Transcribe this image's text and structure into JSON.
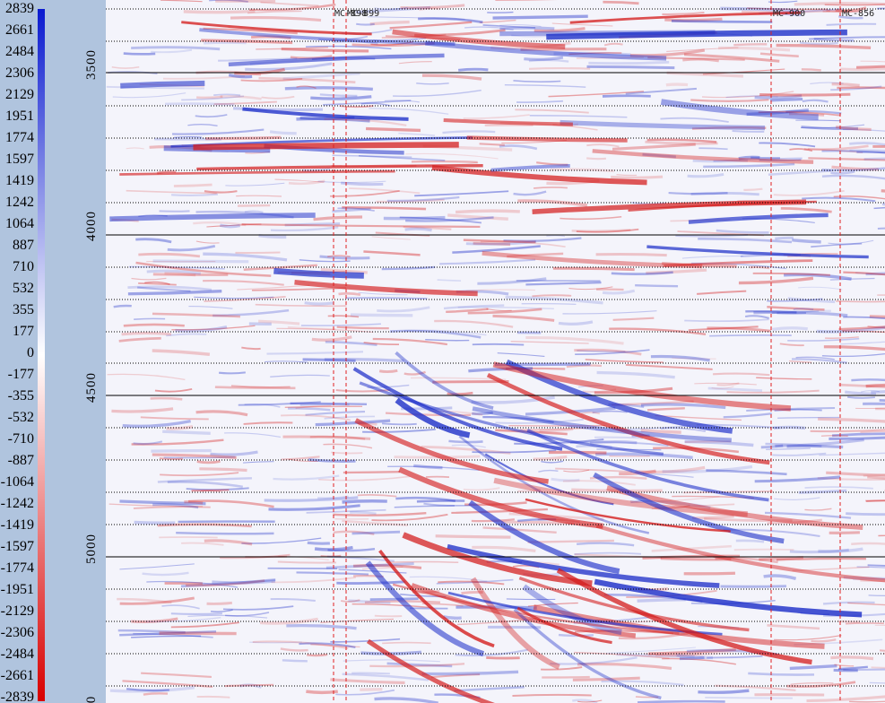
{
  "colorbar": {
    "labels": [
      "2839",
      "2661",
      "2484",
      "2306",
      "2129",
      "1951",
      "1774",
      "1597",
      "1419",
      "1242",
      "1064",
      "887",
      "710",
      "532",
      "355",
      "177",
      "0",
      "-177",
      "-355",
      "-532",
      "-710",
      "-887",
      "-1064",
      "-1242",
      "-1419",
      "-1597",
      "-1774",
      "-1951",
      "-2129",
      "-2306",
      "-2484",
      "-2661",
      "-2839"
    ]
  },
  "depth_axis": {
    "labels": [
      "3500",
      "4000",
      "4500",
      "5000",
      "0"
    ]
  },
  "wells": {
    "labels": [
      "MC-898",
      "MC-899",
      "MC-900",
      "MC-856"
    ]
  }
}
